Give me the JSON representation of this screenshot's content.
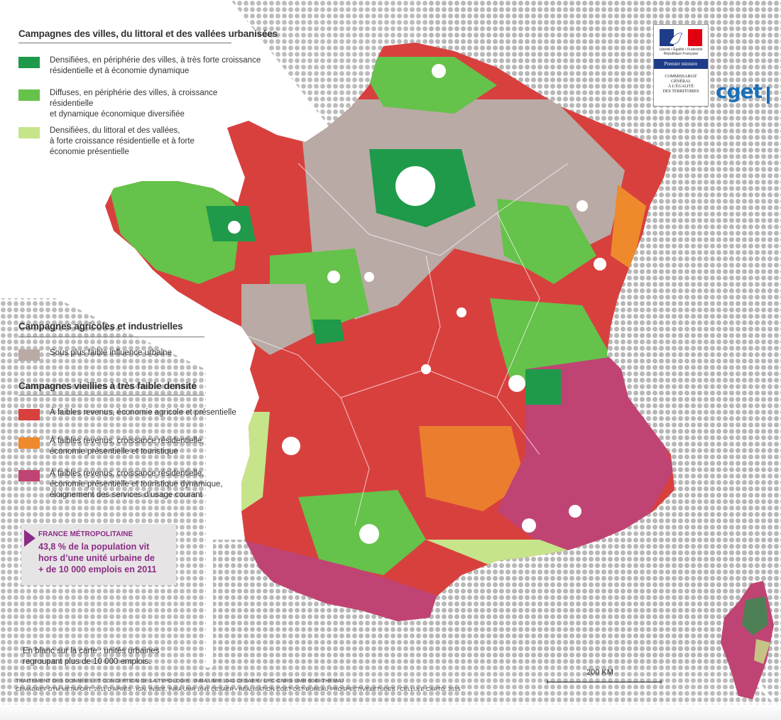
{
  "legend": {
    "groups": [
      {
        "title": "Campagnes des villes, du littoral et des vallées urbanisées",
        "items": [
          {
            "color": "#1e9a4a",
            "label": "Densifiées, en périphérie des villes, à très forte croissance\nrésidentielle et à économie dynamique"
          },
          {
            "color": "#65c24a",
            "label": "Diffuses, en périphérie des villes, à croissance résidentielle\net dynamique économique diversifiée"
          },
          {
            "color": "#c6e48a",
            "label": "Densifiées, du littoral et des vallées,\nà forte croissance résidentielle et à forte\néconomie présentielle"
          }
        ]
      },
      {
        "title": "Campagnes agricoles et industrielles",
        "items": [
          {
            "color": "#b9aaa5",
            "label": "Sous plus faible influence urbaine"
          }
        ]
      },
      {
        "title": "Campagnes vieillies à très faible densité",
        "items": [
          {
            "color": "#d8403e",
            "label": "À faibles revenus, économie agricole et présentielle"
          },
          {
            "color": "#ee8a2c",
            "label": "À faibles revenus, croissance résidentielle,\néconomie présentielle et touristique"
          },
          {
            "color": "#c04473",
            "label": "À faibles revenus, croissance résidentielle,\néconomie présentielle et touristique dynamique,\néloignement des services d’usage courant"
          }
        ]
      }
    ]
  },
  "logos": {
    "rf_motto": "Liberté • Égalité • Fraternité\nRépublique Française",
    "rf_band": "Premier ministre",
    "rf_agency": "COMMISSARIAT\nGÉNÉRAL\nÀ L’ÉGALITÉ\nDES TERRITOIRES",
    "cget": "cget"
  },
  "callout": {
    "heading": "FRANCE MÉTROPOLITAINE",
    "body": "43,8 % de la population vit\nhors d’une unité urbaine de\n+ de 10 000 emplois en 2011"
  },
  "note": "En blanc sur la carte : unités urbaines\nregroupant plus de 10 000 emplois.",
  "credits": "TRAITEMENT DES DONNÉES ET CONCEPTION DE LA TYPOLOGIE : INRA UMR 1041 CESAER / UFC-CNRS UMR 6049 THÉMA /\nCEMAGREF DTM METAFORT, 2011 D’APRÈS : IGN, INSEE, INRA UMR 1041 CESAER • RÉALISATION CGET-DST-BUREAU PROSPECTIVE&ETUDES / CELLULE CARTO, 2015",
  "scale": {
    "label": "200 KM"
  },
  "colors": {
    "sea_dots": "#b5b5b5",
    "land_base": "#d8403e",
    "urban": "#ffffff",
    "flag_blue": "#1f3c88",
    "flag_red": "#e1000f",
    "cget_blue": "#1b6fb8",
    "callout_purple": "#8b2d86"
  }
}
